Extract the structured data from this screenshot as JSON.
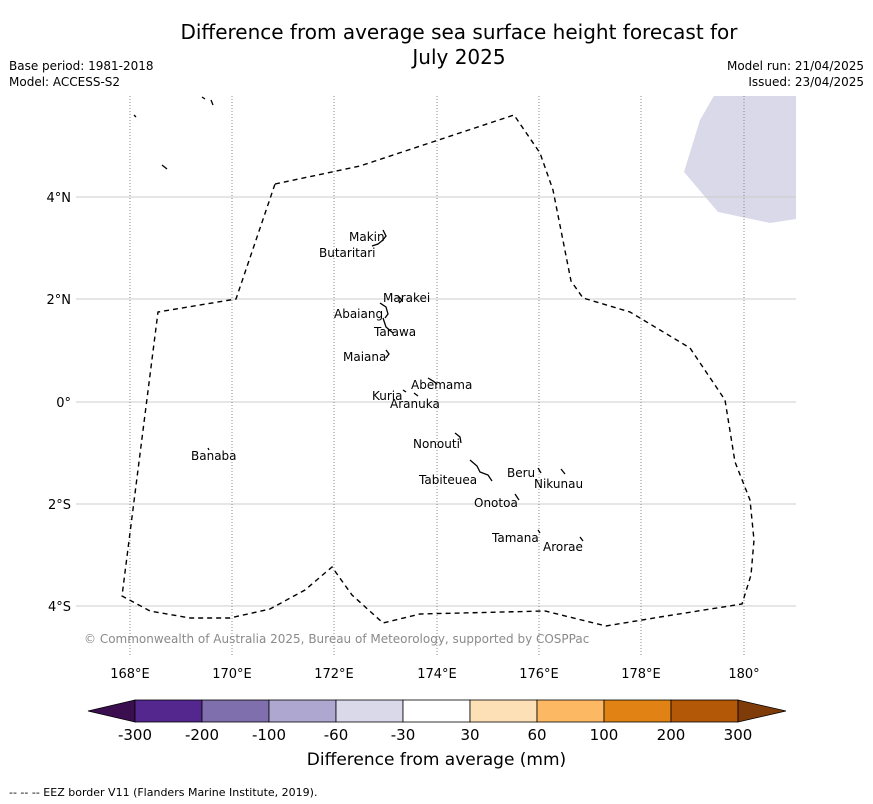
{
  "title": "Difference from average sea surface height forecast for July 2025",
  "title_line1": "Difference from average sea surface height forecast for",
  "title_line2": "July 2025",
  "meta_left": {
    "base_period": "Base period: 1981-2018",
    "model": "Model: ACCESS-S2"
  },
  "meta_right": {
    "model_run": "Model run: 21/04/2025",
    "issued": "Issued: 23/04/2025"
  },
  "map": {
    "lon_ticks": [
      "168°E",
      "170°E",
      "172°E",
      "174°E",
      "176°E",
      "178°E",
      "180°"
    ],
    "lat_ticks": [
      "4°N",
      "2°N",
      "0°",
      "2°S",
      "4°S"
    ],
    "islands": [
      "Makin",
      "Butaritari",
      "Marakei",
      "Abaiang",
      "Tarawa",
      "Maiana",
      "Abemama",
      "Kuria",
      "Aranuka",
      "Nonouti",
      "Banaba",
      "Tabiteuea",
      "Beru",
      "Nikunau",
      "Onotoa",
      "Tamana",
      "Arorae"
    ]
  },
  "copyright": "© Commonwealth of Australia 2025, Bureau of Meteorology, supported by COSPPac",
  "colorbar": {
    "title": "Difference from average (mm)",
    "tick_labels": [
      "-300",
      "-200",
      "-100",
      "-60",
      "-30",
      "30",
      "60",
      "100",
      "200",
      "300"
    ],
    "colors": [
      "#3b0f4f",
      "#54278f",
      "#7f6fac",
      "#aea8d1",
      "#d9d9ea",
      "#ffffff",
      "#fee0b6",
      "#fdb863",
      "#e08214",
      "#b35806",
      "#7f3b08"
    ]
  },
  "eez_note": "--  --  -- EEZ border V11 (Flanders Marine Institute, 2019)."
}
